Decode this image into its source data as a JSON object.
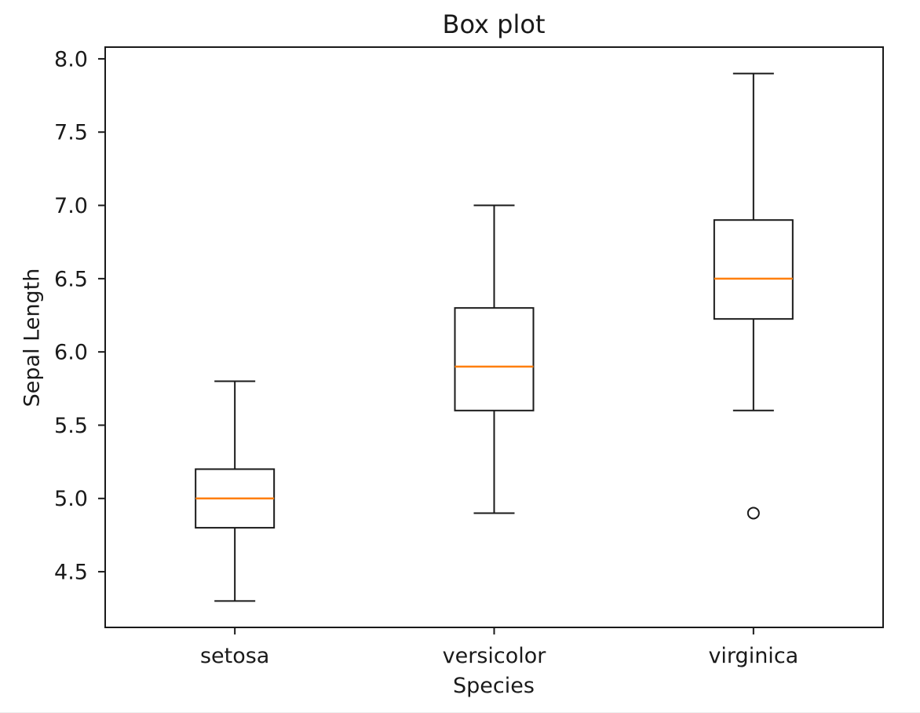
{
  "colors": {
    "line": "#1a1a1a",
    "median": "#ff7f0e",
    "background": "#ffffff"
  },
  "chart_data": {
    "type": "boxplot",
    "title": "Box plot",
    "xlabel": "Species",
    "ylabel": "Sepal Length",
    "categories": [
      "setosa",
      "versicolor",
      "virginica"
    ],
    "series": [
      {
        "name": "setosa",
        "whislo": 4.3,
        "q1": 4.8,
        "med": 5.0,
        "q3": 5.2,
        "whishi": 5.8,
        "fliers": []
      },
      {
        "name": "versicolor",
        "whislo": 4.9,
        "q1": 5.6,
        "med": 5.9,
        "q3": 6.3,
        "whishi": 7.0,
        "fliers": []
      },
      {
        "name": "virginica",
        "whislo": 5.6,
        "q1": 6.225,
        "med": 6.5,
        "q3": 6.9,
        "whishi": 7.9,
        "fliers": [
          4.9
        ]
      }
    ],
    "yticks": [
      4.5,
      5.0,
      5.5,
      6.0,
      6.5,
      7.0,
      7.5,
      8.0
    ],
    "ytick_labels": [
      "4.5",
      "5.0",
      "5.5",
      "6.0",
      "6.5",
      "7.0",
      "7.5",
      "8.0"
    ],
    "ylim": [
      4.12,
      8.08
    ],
    "grid": false,
    "legend_position": "none"
  }
}
